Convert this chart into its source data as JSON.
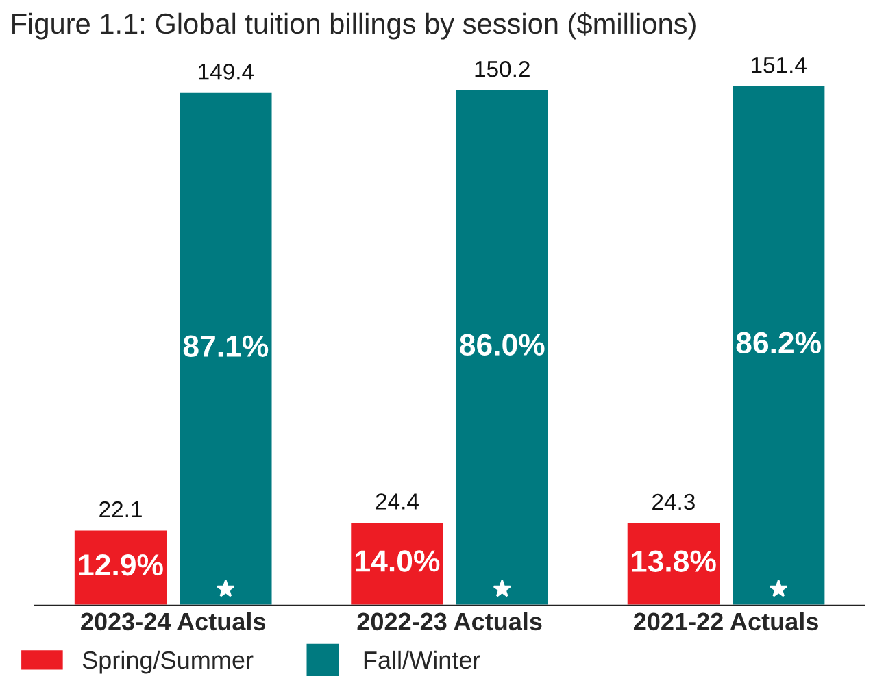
{
  "chart_data": {
    "type": "bar",
    "title": "Figure 1.1: Global tuition billings by session ($millions)",
    "categories": [
      "2023-24 Actuals",
      "2022-23 Actuals",
      "2021-22 Actuals"
    ],
    "series": [
      {
        "name": "Spring/Summer",
        "color": "#ed1c24",
        "values": [
          22.1,
          24.4,
          24.3
        ]
      },
      {
        "name": "Fall/Winter",
        "color": "#007a80",
        "values": [
          149.4,
          150.2,
          151.4
        ],
        "marker": "star"
      }
    ],
    "data_labels": true,
    "annotations": [
      "12.9%",
      "14.0%",
      "13.8%",
      "87.1%",
      "86.0%",
      "86.2%"
    ],
    "tick_labels": "x",
    "legend": "bottom left",
    "grid": false
  }
}
